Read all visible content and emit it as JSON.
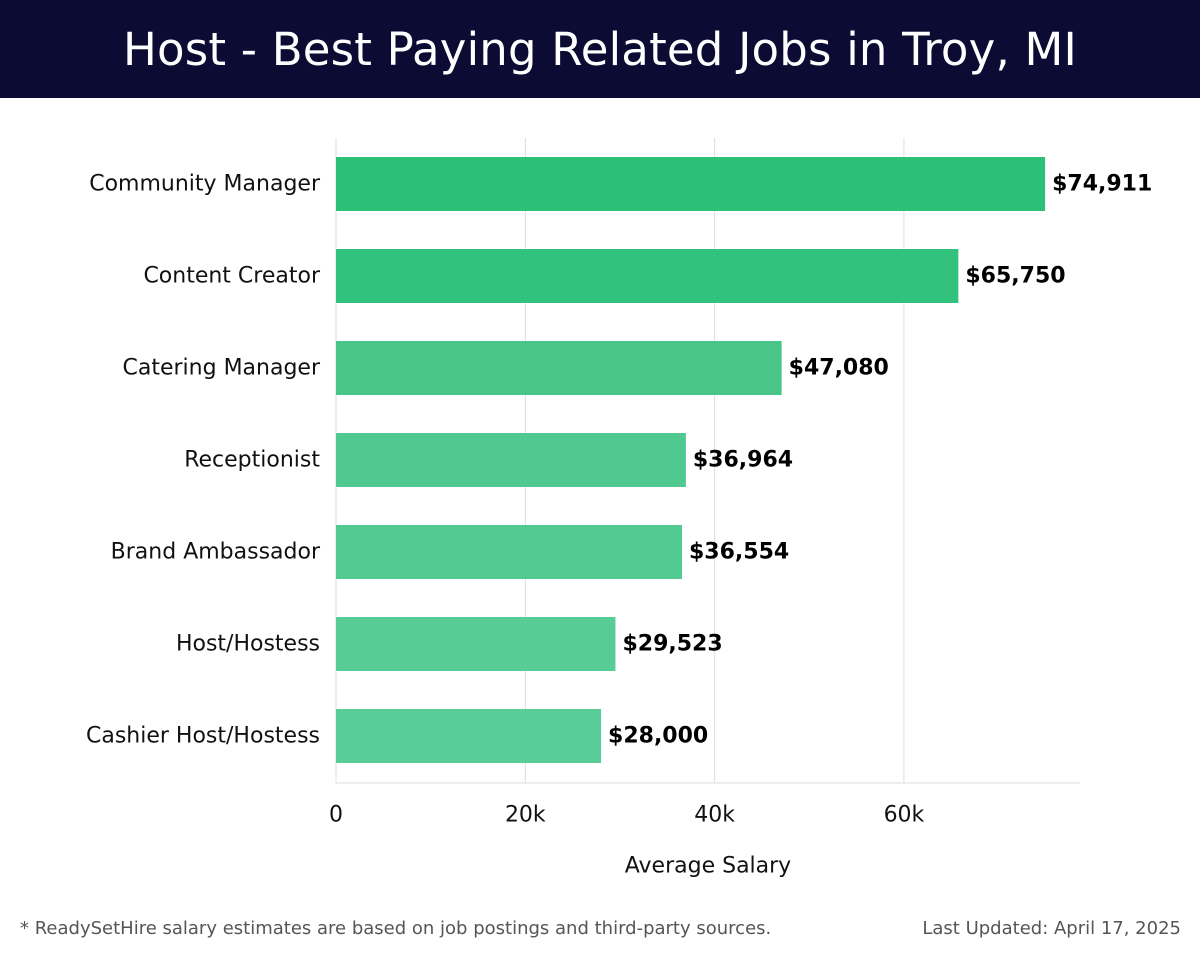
{
  "header": {
    "title": "Host - Best Paying Related Jobs in Troy, MI"
  },
  "footer": {
    "note": "* ReadySetHire salary estimates are based on job postings and third-party sources.",
    "updated": "Last Updated: April 17, 2025"
  },
  "chart_data": {
    "type": "bar",
    "orientation": "horizontal",
    "categories": [
      "Community Manager",
      "Content Creator",
      "Catering Manager",
      "Receptionist",
      "Brand Ambassador",
      "Host/Hostess",
      "Cashier Host/Hostess"
    ],
    "values": [
      74911,
      65750,
      47080,
      36964,
      36554,
      29523,
      28000
    ],
    "value_labels": [
      "$74,911",
      "$65,750",
      "$47,080",
      "$36,964",
      "$36,554",
      "$29,523",
      "$28,000"
    ],
    "bar_colors": [
      "#2cbf78",
      "#33c27d",
      "#49c58a",
      "#4fc98f",
      "#51ca91",
      "#57cd95",
      "#59cd97"
    ],
    "xlabel": "Average Salary",
    "ylabel": "",
    "xlim": [
      0,
      78600
    ],
    "xticks": [
      0,
      20000,
      40000,
      60000
    ],
    "xtick_labels": [
      "0",
      "20k",
      "40k",
      "60k"
    ],
    "grid": "vertical",
    "legend": "none"
  }
}
